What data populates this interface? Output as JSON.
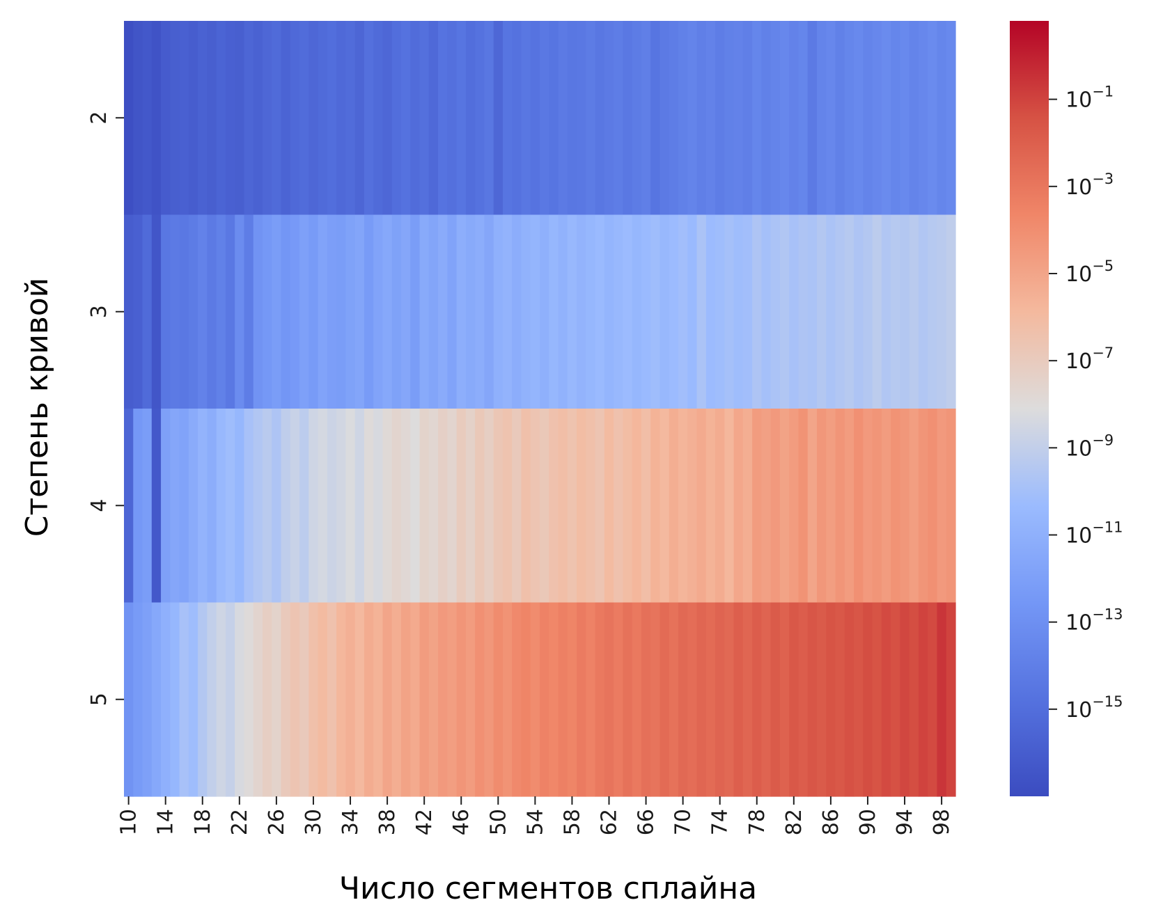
{
  "chart_data": {
    "type": "heatmap",
    "title": "",
    "xlabel": "Число сегментов сплайна",
    "ylabel": "Степень кривой",
    "x": [
      10,
      11,
      12,
      13,
      14,
      15,
      16,
      17,
      18,
      19,
      20,
      21,
      22,
      23,
      24,
      25,
      26,
      27,
      28,
      29,
      30,
      31,
      32,
      33,
      34,
      35,
      36,
      37,
      38,
      39,
      40,
      41,
      42,
      43,
      44,
      45,
      46,
      47,
      48,
      49,
      50,
      51,
      52,
      53,
      54,
      55,
      56,
      57,
      58,
      59,
      60,
      61,
      62,
      63,
      64,
      65,
      66,
      67,
      68,
      69,
      70,
      71,
      72,
      73,
      74,
      75,
      76,
      77,
      78,
      79,
      80,
      81,
      82,
      83,
      84,
      85,
      86,
      87,
      88,
      89,
      90,
      91,
      92,
      93,
      94,
      95,
      96,
      97,
      98,
      99
    ],
    "x_tick_labels": [
      "10",
      "14",
      "18",
      "22",
      "26",
      "30",
      "34",
      "38",
      "42",
      "46",
      "50",
      "54",
      "58",
      "62",
      "66",
      "70",
      "74",
      "78",
      "82",
      "86",
      "90",
      "94",
      "98"
    ],
    "y": [
      2,
      3,
      4,
      5
    ],
    "y_tick_labels": [
      "2",
      "3",
      "4",
      "5"
    ],
    "color_scale": "log",
    "colormap": "coolwarm",
    "colorbar_range_log10": [
      -17,
      0.8
    ],
    "colorbar_ticks": [
      -1,
      -3,
      -5,
      -7,
      -9,
      -11,
      -13,
      -15
    ],
    "colorbar_tick_labels": [
      {
        "base": "10",
        "exp": "−1"
      },
      {
        "base": "10",
        "exp": "−3"
      },
      {
        "base": "10",
        "exp": "−5"
      },
      {
        "base": "10",
        "exp": "−7"
      },
      {
        "base": "10",
        "exp": "−9"
      },
      {
        "base": "10",
        "exp": "−11"
      },
      {
        "base": "10",
        "exp": "−13"
      },
      {
        "base": "10",
        "exp": "−15"
      }
    ],
    "values_log10": [
      [
        -16.8,
        -16.5,
        -16.3,
        -16.6,
        -16.1,
        -15.9,
        -15.8,
        -16.0,
        -15.7,
        -15.9,
        -15.6,
        -15.8,
        -15.9,
        -15.5,
        -15.7,
        -15.4,
        -15.2,
        -15.6,
        -15.3,
        -15.1,
        -15.4,
        -15.2,
        -15.0,
        -15.3,
        -15.1,
        -15.5,
        -14.9,
        -15.2,
        -15.4,
        -15.0,
        -14.8,
        -15.1,
        -14.9,
        -15.3,
        -14.7,
        -14.9,
        -14.6,
        -15.0,
        -14.8,
        -14.5,
        -15.4,
        -14.6,
        -14.8,
        -14.5,
        -14.7,
        -14.4,
        -14.6,
        -14.3,
        -14.5,
        -14.4,
        -14.2,
        -14.5,
        -14.3,
        -14.1,
        -14.4,
        -14.2,
        -14.0,
        -14.6,
        -14.3,
        -14.1,
        -13.9,
        -13.7,
        -14.0,
        -13.8,
        -14.1,
        -13.9,
        -13.8,
        -14.0,
        -13.6,
        -13.9,
        -13.7,
        -13.5,
        -13.8,
        -13.6,
        -14.3,
        -13.7,
        -13.5,
        -13.9,
        -13.6,
        -13.4,
        -13.7,
        -13.5,
        -13.3,
        -13.6,
        -13.4,
        -13.7,
        -13.5,
        -13.3,
        -13.6,
        -13.4
      ],
      [
        -16.0,
        -15.8,
        -15.2,
        -16.4,
        -14.5,
        -14.3,
        -14.4,
        -14.2,
        -13.8,
        -14.3,
        -13.9,
        -14.4,
        -13.2,
        -14.1,
        -12.8,
        -12.5,
        -12.2,
        -12.6,
        -12.4,
        -12.0,
        -12.3,
        -11.8,
        -12.1,
        -12.2,
        -11.9,
        -11.7,
        -12.3,
        -11.8,
        -11.5,
        -11.9,
        -11.6,
        -12.2,
        -11.4,
        -11.7,
        -11.3,
        -11.8,
        -11.1,
        -11.4,
        -11.2,
        -11.6,
        -11.0,
        -10.8,
        -11.2,
        -10.9,
        -10.7,
        -11.0,
        -10.6,
        -10.9,
        -10.5,
        -10.8,
        -10.6,
        -10.4,
        -10.7,
        -10.5,
        -10.3,
        -10.6,
        -10.4,
        -10.2,
        -10.5,
        -10.3,
        -10.1,
        -10.4,
        -9.8,
        -10.3,
        -10.2,
        -10.0,
        -10.2,
        -10.1,
        -9.7,
        -10.0,
        -9.8,
        -9.6,
        -9.9,
        -9.7,
        -9.8,
        -9.5,
        -9.8,
        -9.6,
        -9.4,
        -9.7,
        -9.5,
        -9.2,
        -9.6,
        -9.4,
        -9.5,
        -9.3,
        -9.6,
        -9.4,
        -9.3,
        -9.1
      ],
      [
        -15.5,
        -12.5,
        -12.2,
        -16.3,
        -12.0,
        -11.6,
        -11.8,
        -11.3,
        -10.8,
        -11.2,
        -10.5,
        -10.2,
        -10.6,
        -9.9,
        -9.6,
        -9.3,
        -9.7,
        -9.1,
        -8.8,
        -9.2,
        -8.6,
        -8.4,
        -8.7,
        -8.5,
        -8.2,
        -8.6,
        -8.0,
        -8.3,
        -7.9,
        -7.6,
        -7.8,
        -8.1,
        -7.5,
        -7.7,
        -7.3,
        -7.6,
        -7.0,
        -7.4,
        -6.8,
        -7.2,
        -6.7,
        -6.5,
        -6.9,
        -6.3,
        -6.6,
        -6.8,
        -6.4,
        -6.2,
        -6.5,
        -6.1,
        -6.3,
        -6.6,
        -6.0,
        -6.4,
        -6.1,
        -5.8,
        -6.2,
        -5.6,
        -5.9,
        -5.4,
        -5.7,
        -5.5,
        -5.2,
        -5.6,
        -5.3,
        -5.8,
        -5.1,
        -5.4,
        -4.6,
        -4.8,
        -4.5,
        -4.9,
        -4.6,
        -4.2,
        -5.0,
        -4.4,
        -4.7,
        -4.3,
        -4.6,
        -4.1,
        -4.5,
        -4.3,
        -4.6,
        -4.2,
        -4.4,
        -4.7,
        -4.3,
        -4.1,
        -4.5,
        -4.3
      ],
      [
        -12.8,
        -12.3,
        -12.0,
        -11.5,
        -11.0,
        -10.6,
        -9.9,
        -10.2,
        -9.5,
        -9.0,
        -8.6,
        -8.9,
        -8.3,
        -8.0,
        -7.6,
        -7.2,
        -7.5,
        -6.9,
        -6.6,
        -6.9,
        -6.3,
        -6.0,
        -6.4,
        -5.8,
        -5.5,
        -5.9,
        -5.3,
        -5.6,
        -5.0,
        -5.4,
        -4.9,
        -5.2,
        -4.6,
        -4.9,
        -4.5,
        -4.7,
        -4.3,
        -4.6,
        -4.1,
        -4.4,
        -3.9,
        -4.2,
        -3.8,
        -3.6,
        -3.9,
        -3.5,
        -3.7,
        -3.4,
        -3.6,
        -3.2,
        -3.5,
        -3.1,
        -2.9,
        -3.2,
        -2.8,
        -3.1,
        -2.7,
        -2.9,
        -2.5,
        -2.8,
        -2.4,
        -2.6,
        -2.3,
        -2.5,
        -2.2,
        -2.4,
        -2.0,
        -2.3,
        -1.9,
        -2.2,
        -1.8,
        -2.1,
        -1.7,
        -1.9,
        -1.6,
        -1.8,
        -1.5,
        -1.7,
        -1.4,
        -1.6,
        -1.3,
        -1.5,
        -1.2,
        -1.4,
        -1.1,
        -1.3,
        -1.0,
        -1.2,
        -0.6,
        -1.0
      ]
    ]
  }
}
